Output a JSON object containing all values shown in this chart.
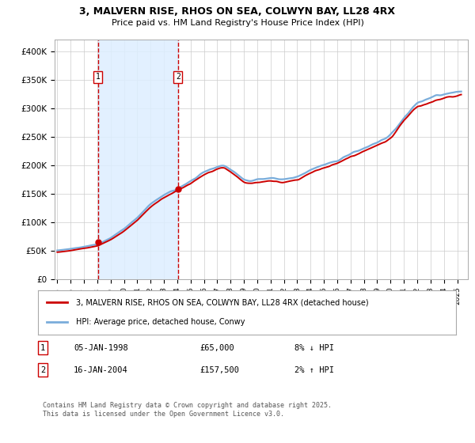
{
  "title1": "3, MALVERN RISE, RHOS ON SEA, COLWYN BAY, LL28 4RX",
  "title2": "Price paid vs. HM Land Registry's House Price Index (HPI)",
  "ylabel_ticks": [
    "£0",
    "£50K",
    "£100K",
    "£150K",
    "£200K",
    "£250K",
    "£300K",
    "£350K",
    "£400K"
  ],
  "ytick_values": [
    0,
    50000,
    100000,
    150000,
    200000,
    250000,
    300000,
    350000,
    400000
  ],
  "ylim": [
    0,
    420000
  ],
  "xlim_start": 1994.8,
  "xlim_end": 2025.8,
  "sale1_date": 1998.04,
  "sale1_price": 65000,
  "sale2_date": 2004.05,
  "sale2_price": 157500,
  "hpi_line_color": "#7aaddb",
  "price_line_color": "#cc0000",
  "vline_color": "#cc0000",
  "shade_color": "#ddeeff",
  "legend_label1": "3, MALVERN RISE, RHOS ON SEA, COLWYN BAY, LL28 4RX (detached house)",
  "legend_label2": "HPI: Average price, detached house, Conwy",
  "annotation1_date": "05-JAN-1998",
  "annotation1_price": "£65,000",
  "annotation1_hpi": "8% ↓ HPI",
  "annotation2_date": "16-JAN-2004",
  "annotation2_price": "£157,500",
  "annotation2_hpi": "2% ↑ HPI",
  "footer": "Contains HM Land Registry data © Crown copyright and database right 2025.\nThis data is licensed under the Open Government Licence v3.0.",
  "bg_color": "#ffffff",
  "grid_color": "#cccccc"
}
